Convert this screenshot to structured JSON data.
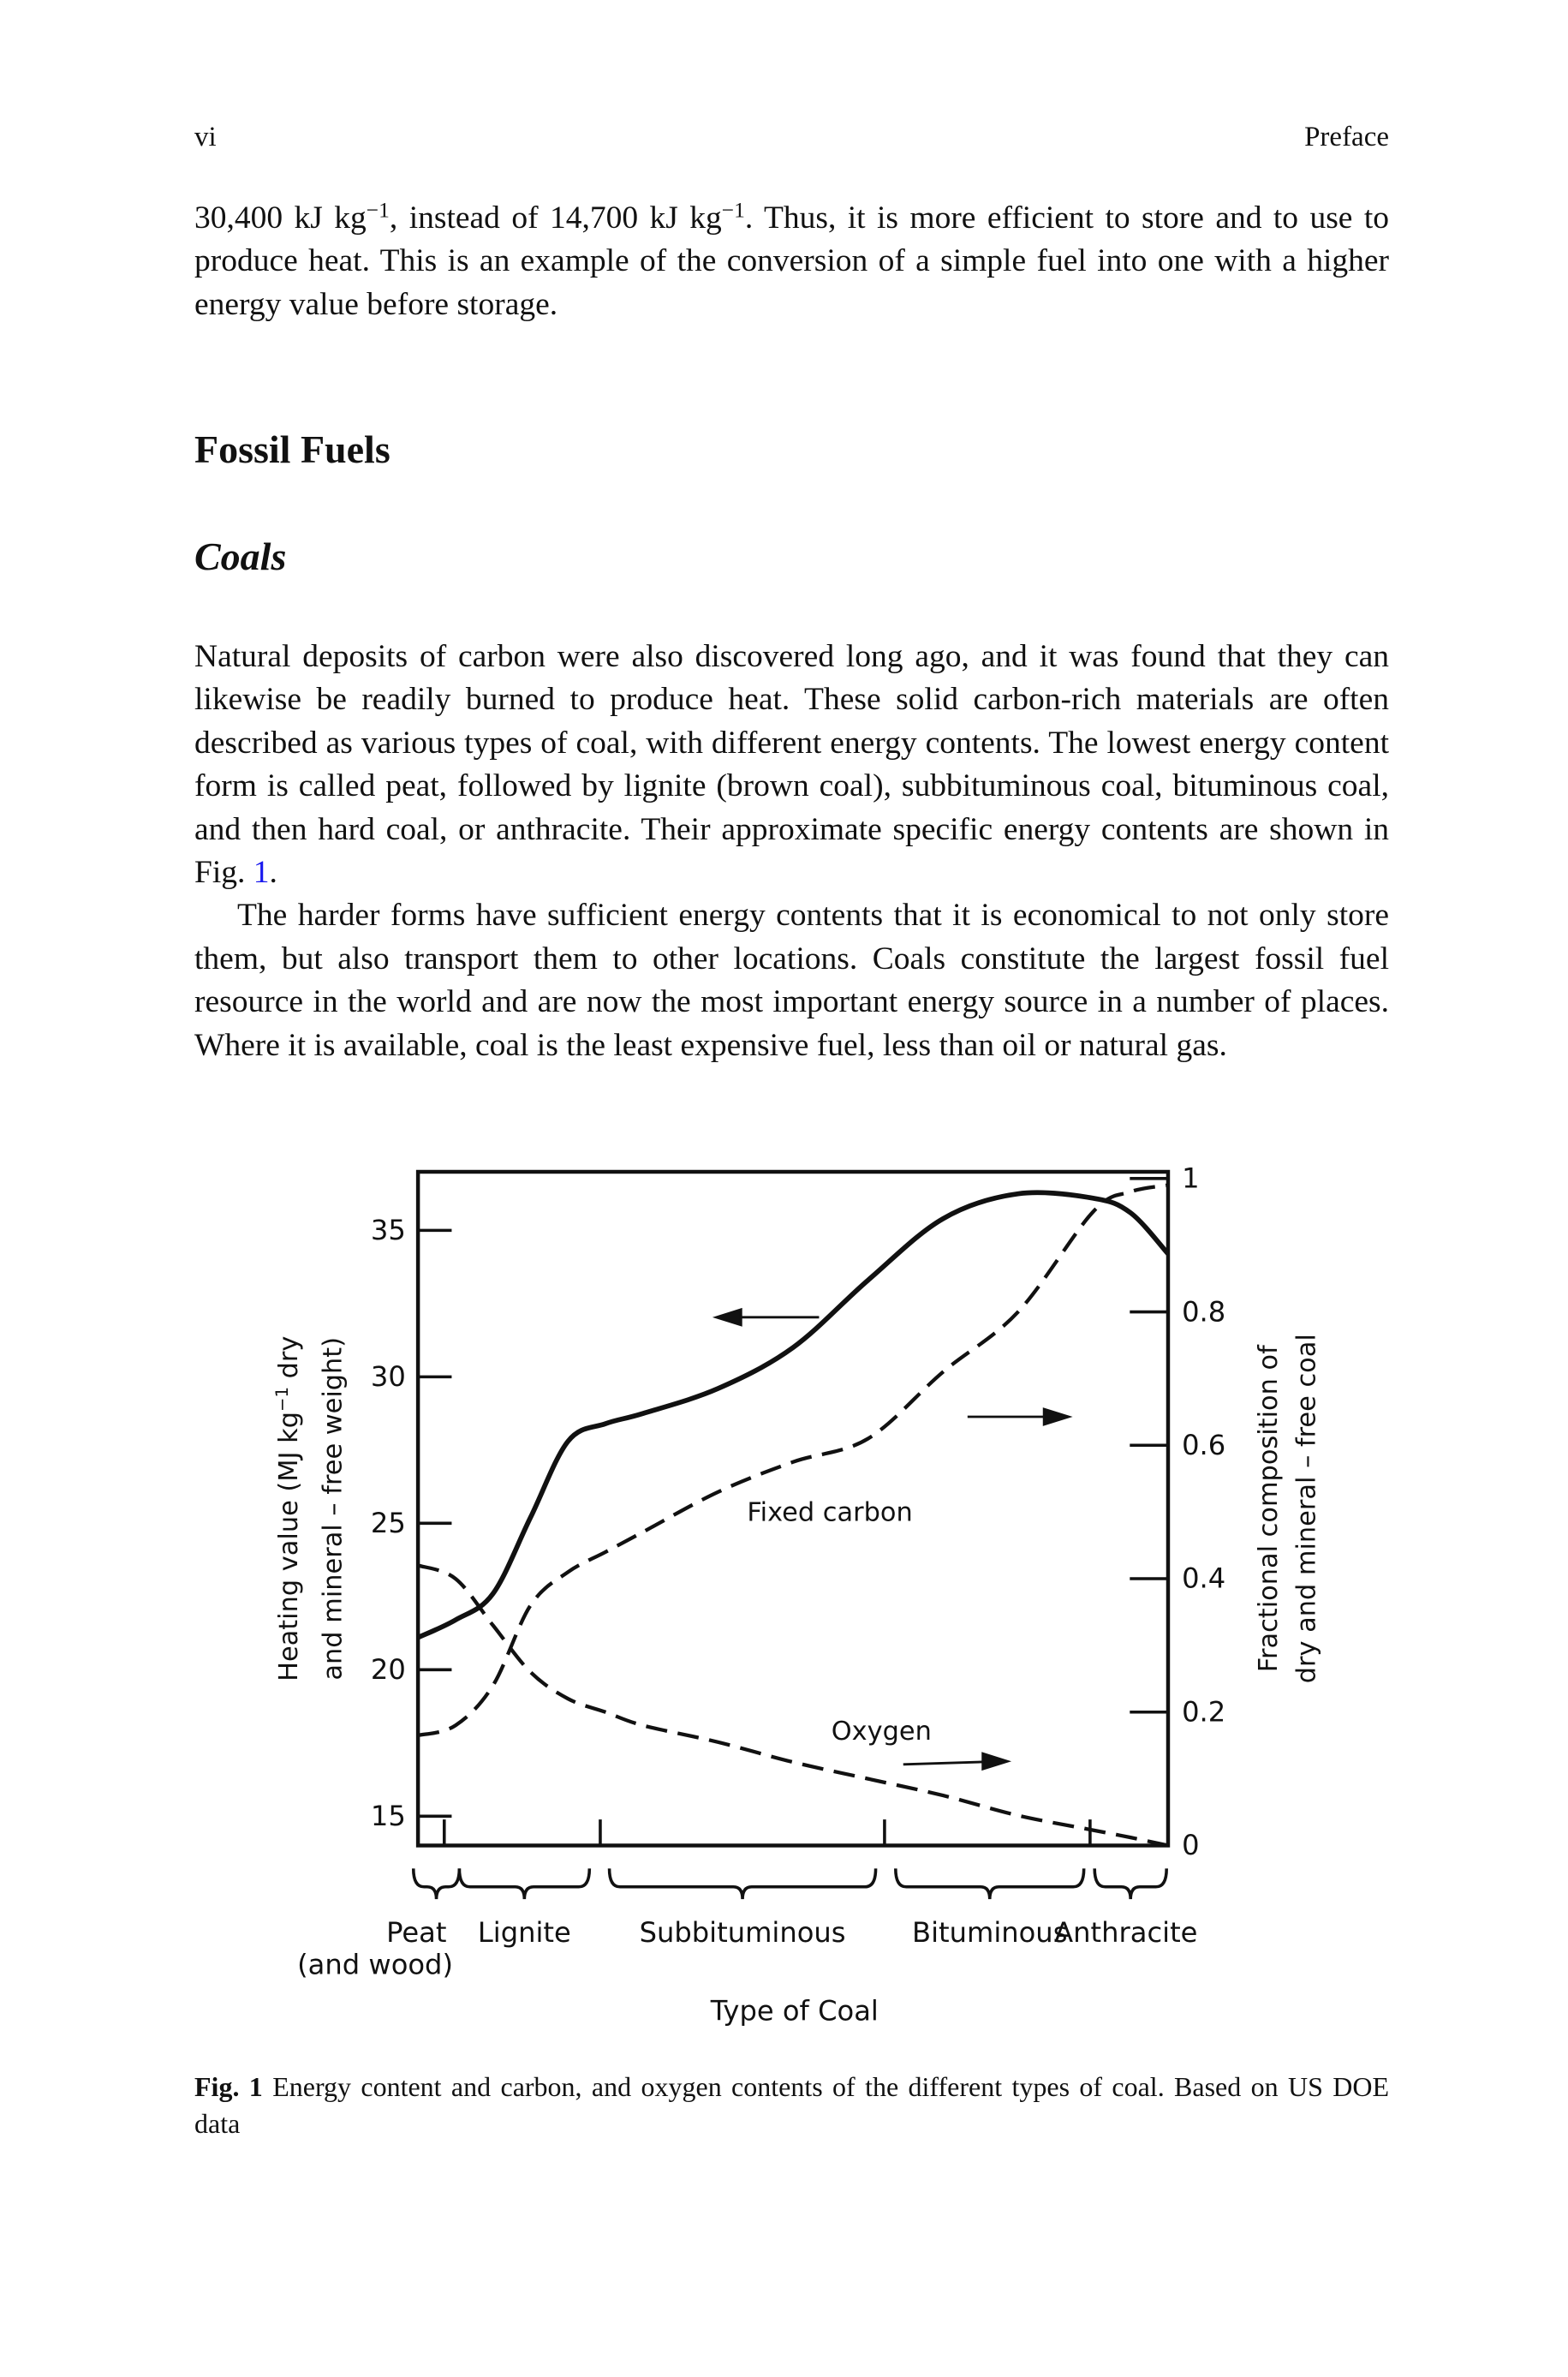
{
  "header": {
    "page": "vi",
    "running_title": "Preface"
  },
  "intro_paragraph": [
    "30,400 kJ kg",
    "−1",
    ", instead of 14,700 kJ kg",
    "−1",
    ". Thus, it is more efficient to store and to use to produce heat. This is an example of the conversion of a simple fuel into one with a higher energy value before storage."
  ],
  "section_title": "Fossil Fuels",
  "subsection_title": "Coals",
  "paragraphs": [
    [
      "Natural deposits of carbon were also discovered long ago, and it was found that they can likewise be readily burned to produce heat. These solid carbon-rich materials are often described as various types of coal, with different energy contents. The lowest energy content form is called peat, followed by lignite (brown coal), subbituminous coal, bituminous coal, and then hard coal, or anthracite. Their approximate specific energy contents are shown in Fig. ",
      "1",
      "."
    ],
    [
      "The harder forms have sufficient energy contents that it is economical to not only store them, but also transport them to other locations. Coals constitute the largest fossil fuel resource in the world and are now the most important energy source in a number of places. Where it is available, coal is the least expensive fuel, less than oil or natural gas."
    ]
  ],
  "chart_data": {
    "type": "line",
    "x_label": "Type of Coal",
    "y_label": [
      [
        "Heating value (MJ kg",
        "−1",
        " dry"
      ],
      [
        "and mineral – free weight)"
      ]
    ],
    "y2_label": [
      "Fractional composition of",
      "dry and mineral – free coal"
    ],
    "coal_types": [
      [
        "Peat",
        "(and wood)"
      ],
      [
        "Lignite"
      ],
      [
        "Subbituminous"
      ],
      [
        "Bituminous"
      ],
      [
        "Anthracite"
      ]
    ],
    "x": [
      0,
      0.5,
      1,
      1.5,
      2,
      2.5,
      3,
      4,
      5,
      6,
      7,
      8,
      9,
      9.5,
      10
    ],
    "xlim": [
      0,
      10
    ],
    "xticks": [
      0.35,
      2.43,
      6.22,
      8.96
    ],
    "ylim": [
      14,
      37
    ],
    "yticks": [
      15,
      20,
      25,
      30,
      35
    ],
    "y2lim": [
      0,
      1.01
    ],
    "y2ticks": [
      0,
      0.2,
      0.4,
      0.6,
      0.8,
      1
    ],
    "series": [
      {
        "color": "#111111",
        "values": [
          21.1,
          21.7,
          22.6,
          25.2,
          27.8,
          28.4,
          28.75,
          29.6,
          31.0,
          33.3,
          35.4,
          36.25,
          36.1,
          35.6,
          34.2
        ]
      },
      {
        "name": "Fixed carbon",
        "color": "#111111",
        "axis": "y2",
        "values": [
          0.165,
          0.18,
          0.24,
          0.36,
          0.41,
          0.44,
          0.47,
          0.53,
          0.575,
          0.61,
          0.71,
          0.8,
          0.95,
          0.98,
          0.99
        ]
      },
      {
        "name": "Oxygen",
        "color": "#111111",
        "axis": "y2",
        "values": [
          0.42,
          0.4,
          0.33,
          0.26,
          0.22,
          0.2,
          0.18,
          0.155,
          0.125,
          0.1,
          0.075,
          0.045,
          0.023,
          0.012,
          0.0
        ]
      }
    ]
  },
  "caption": {
    "label": "Fig. 1",
    "text": "Energy content and carbon, and oxygen contents of the different types of coal. Based on US DOE data"
  }
}
